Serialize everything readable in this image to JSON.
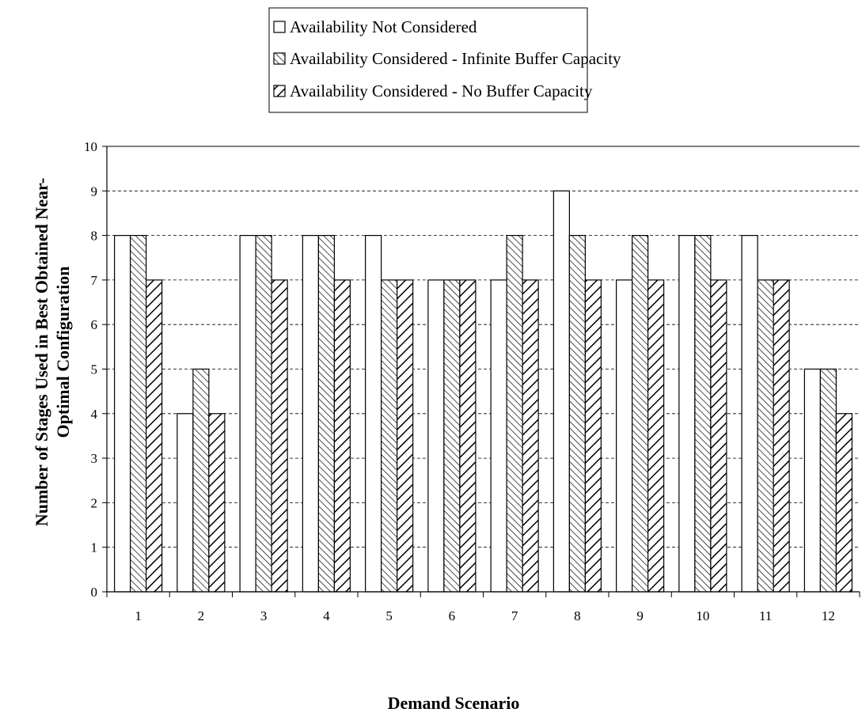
{
  "chart_data": {
    "type": "bar",
    "title": "",
    "xlabel": "Demand Scenario",
    "ylabel_lines": [
      "Number of Stages Used in Best Obtained Near-",
      "Optimal Configuration"
    ],
    "ylim": [
      0,
      10
    ],
    "yticks": [
      0,
      1,
      2,
      3,
      4,
      5,
      6,
      7,
      8,
      9,
      10
    ],
    "grid": "horizontal-dashed",
    "legend_position": "top-center",
    "categories": [
      "1",
      "2",
      "3",
      "4",
      "5",
      "6",
      "7",
      "8",
      "9",
      "10",
      "11",
      "12"
    ],
    "series": [
      {
        "name": "Availability Not Considered",
        "pattern": "none",
        "values": [
          8,
          4,
          8,
          8,
          8,
          7,
          7,
          9,
          7,
          8,
          8,
          5
        ]
      },
      {
        "name": "Availability Considered - Infinite Buffer Capacity",
        "pattern": "fine-diagonal",
        "values": [
          8,
          5,
          8,
          8,
          7,
          7,
          8,
          8,
          8,
          8,
          7,
          5
        ]
      },
      {
        "name": "Availability Considered - No Buffer Capacity",
        "pattern": "wide-diagonal",
        "values": [
          7,
          4,
          7,
          7,
          7,
          7,
          7,
          7,
          7,
          7,
          7,
          4
        ]
      }
    ]
  }
}
